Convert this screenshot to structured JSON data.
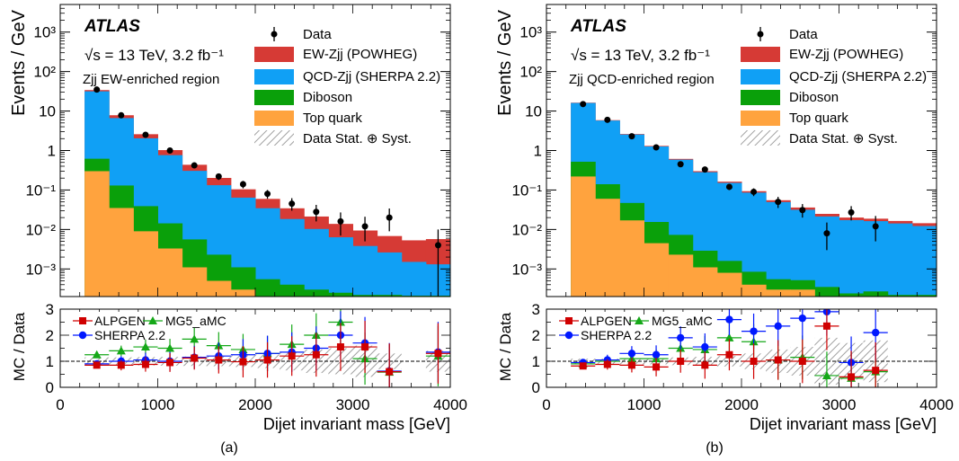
{
  "colors": {
    "ew": "#d63a35",
    "qcd": "#10a0f5",
    "diboson": "#0aa00a",
    "top": "#ffa33e",
    "data": "#000000",
    "alpgen": "#d00000",
    "sherpa": "#0018ff",
    "mg5": "#15a818",
    "hatch": "#a0a0a0"
  },
  "chart_data": [
    {
      "type": "histogram",
      "panel": "a",
      "caption": "(a)",
      "atlas_label": "ATLAS",
      "energy_label": "√s = 13 TeV, 3.2 fb⁻¹",
      "region_label": "Zjj EW-enriched region",
      "ylabel": "Events / GeV",
      "ratio_ylabel": "MC / Data",
      "xlabel": "Dijet invariant mass [GeV]",
      "x_ticks": [
        "0",
        "1000",
        "2000",
        "3000",
        "4000"
      ],
      "y_ticks": [
        "10⁻³",
        "10⁻²",
        "10⁻¹",
        "1",
        "10",
        "10²",
        "10³"
      ],
      "ratio_ticks": [
        "0",
        "1",
        "2",
        "3"
      ],
      "xlim": [
        0,
        4000
      ],
      "ylim_log": [
        0.0002,
        5000
      ],
      "ratio_ylim": [
        0,
        3
      ],
      "legend": {
        "data": "Data",
        "ew": "EW-Zjj (POWHEG)",
        "qcd": "QCD-Zjj (SHERPA 2.2)",
        "diboson": "Diboson",
        "top": "Top quark",
        "syst": "Data Stat. ⊕ Syst."
      },
      "ratio_legend": {
        "alpgen": "ALPGEN",
        "mg5": "MG5_aMC",
        "sherpa": "SHERPA 2.2"
      },
      "bin_edges": [
        250,
        500,
        750,
        1000,
        1250,
        1500,
        1750,
        2000,
        2250,
        2500,
        2750,
        3000,
        3250,
        3500,
        3750,
        4000
      ],
      "stack": {
        "top": [
          0.3,
          0.035,
          0.009,
          0.0033,
          0.0011,
          0.0005,
          0.0003,
          0.0002,
          0.0002,
          0.0002,
          0.0002,
          0.0002,
          0.0002,
          0.0002,
          0.0002
        ],
        "diboson": [
          0.32,
          0.095,
          0.03,
          0.011,
          0.0045,
          0.0018,
          0.0008,
          0.00035,
          0.0002,
          0.0001,
          5e-05,
          2e-05,
          2e-05,
          1e-05,
          1e-05
        ],
        "qcd": [
          31,
          6.5,
          2.0,
          0.75,
          0.3,
          0.13,
          0.063,
          0.034,
          0.018,
          0.01,
          0.0061,
          0.0036,
          0.0024,
          0.0013,
          0.0011
        ],
        "ew": [
          2.4,
          1.2,
          0.55,
          0.26,
          0.13,
          0.07,
          0.04,
          0.025,
          0.016,
          0.011,
          0.0075,
          0.0056,
          0.0042,
          0.0038,
          0.0044
        ]
      },
      "data": {
        "x": [
          375,
          625,
          875,
          1125,
          1375,
          1625,
          1875,
          2125,
          2375,
          2625,
          2875,
          3125,
          3375,
          3875
        ],
        "y": [
          35,
          7.8,
          2.5,
          1.0,
          0.42,
          0.22,
          0.14,
          0.08,
          0.045,
          0.028,
          0.016,
          0.012,
          0.02,
          0.004
        ],
        "err_lo": [
          2,
          0.6,
          0.2,
          0.09,
          0.05,
          0.04,
          0.03,
          0.02,
          0.015,
          0.012,
          0.009,
          0.007,
          0.011,
          0.0038
        ],
        "err_hi": [
          2,
          0.6,
          0.2,
          0.09,
          0.05,
          0.04,
          0.03,
          0.02,
          0.017,
          0.014,
          0.011,
          0.009,
          0.014,
          0.006
        ]
      },
      "ratio_band": [
        0.15,
        0.15,
        0.16,
        0.17,
        0.18,
        0.19,
        0.22,
        0.26,
        0.35,
        0.45,
        0.5,
        0.6,
        0.3,
        0.0,
        0.4
      ],
      "ratio": {
        "alpgen": {
          "x": [
            375,
            625,
            875,
            1125,
            1375,
            1625,
            1875,
            2125,
            2375,
            2625,
            2875,
            3125,
            3375,
            3875
          ],
          "y": [
            0.85,
            0.85,
            0.88,
            0.95,
            1.12,
            1.05,
            0.98,
            1.05,
            1.2,
            1.25,
            1.55,
            1.55,
            0.6,
            1.3
          ]
        },
        "sherpa": {
          "x": [
            375,
            625,
            875,
            1125,
            1375,
            1625,
            1875,
            2125,
            2375,
            2625,
            2875,
            3125,
            3375,
            3875
          ],
          "y": [
            0.9,
            1.0,
            1.05,
            1.0,
            1.15,
            1.2,
            1.25,
            1.3,
            1.35,
            1.5,
            2.0,
            1.7,
            0.62,
            1.35
          ]
        },
        "mg5": {
          "x": [
            375,
            625,
            875,
            1125,
            1375,
            1625,
            1875,
            2125,
            2375,
            2625,
            2875,
            3125,
            3375,
            3875
          ],
          "y": [
            1.25,
            1.4,
            1.55,
            1.5,
            1.85,
            1.6,
            1.45,
            1.3,
            1.65,
            2.0,
            2.5,
            1.1,
            0.58,
            1.2
          ]
        }
      }
    },
    {
      "type": "histogram",
      "panel": "b",
      "caption": "(b)",
      "atlas_label": "ATLAS",
      "energy_label": "√s = 13 TeV, 3.2 fb⁻¹",
      "region_label": "Zjj QCD-enriched region",
      "ylabel": "Events / GeV",
      "ratio_ylabel": "MC / Data",
      "xlabel": "Dijet invariant mass [GeV]",
      "x_ticks": [
        "0",
        "1000",
        "2000",
        "3000",
        "4000"
      ],
      "y_ticks": [
        "10⁻³",
        "10⁻²",
        "10⁻¹",
        "1",
        "10",
        "10²",
        "10³"
      ],
      "ratio_ticks": [
        "0",
        "1",
        "2",
        "3"
      ],
      "xlim": [
        0,
        4000
      ],
      "ylim_log": [
        0.0002,
        5000
      ],
      "ratio_ylim": [
        0,
        3
      ],
      "legend": {
        "data": "Data",
        "ew": "EW-Zjj (POWHEG)",
        "qcd": "QCD-Zjj (SHERPA 2.2)",
        "diboson": "Diboson",
        "top": "Top quark",
        "syst": "Data Stat. ⊕ Syst."
      },
      "ratio_legend": {
        "alpgen": "ALPGEN",
        "mg5": "MG5_aMC",
        "sherpa": "SHERPA 2.2"
      },
      "bin_edges": [
        250,
        500,
        750,
        1000,
        1250,
        1500,
        1750,
        2000,
        2250,
        2500,
        2750,
        3000,
        3250,
        3500,
        3750,
        4000
      ],
      "stack": {
        "top": [
          0.22,
          0.06,
          0.017,
          0.0045,
          0.0023,
          0.0011,
          0.0008,
          0.0004,
          0.0003,
          0.0003,
          0.0002,
          0.0002,
          0.0002,
          0.0002,
          0.0002
        ],
        "diboson": [
          0.3,
          0.08,
          0.03,
          0.011,
          0.005,
          0.0018,
          0.0008,
          0.00045,
          0.00025,
          0.00022,
          0.00015,
          4e-05,
          7e-05,
          2e-05,
          2e-05
        ],
        "qcd": [
          15.5,
          5.6,
          2.5,
          1.25,
          0.58,
          0.28,
          0.15,
          0.085,
          0.049,
          0.031,
          0.021,
          0.017,
          0.016,
          0.014,
          0.012
        ],
        "ew": [
          0.3,
          0.14,
          0.075,
          0.045,
          0.027,
          0.017,
          0.011,
          0.0075,
          0.0055,
          0.0045,
          0.0035,
          0.0028,
          0.0025,
          0.0022,
          0.0022
        ]
      },
      "data": {
        "x": [
          375,
          625,
          875,
          1125,
          1375,
          1625,
          1875,
          2125,
          2375,
          2625,
          2875,
          3125,
          3375
        ],
        "y": [
          15,
          6,
          2.3,
          1.2,
          0.45,
          0.33,
          0.12,
          0.09,
          0.05,
          0.031,
          0.008,
          0.027,
          0.012
        ],
        "err_lo": [
          1,
          0.4,
          0.15,
          0.1,
          0.05,
          0.04,
          0.02,
          0.02,
          0.015,
          0.011,
          0.005,
          0.01,
          0.007
        ],
        "err_hi": [
          1,
          0.4,
          0.15,
          0.1,
          0.05,
          0.04,
          0.02,
          0.02,
          0.017,
          0.013,
          0.007,
          0.012,
          0.01
        ]
      },
      "ratio_band": [
        0.1,
        0.1,
        0.12,
        0.12,
        0.15,
        0.17,
        0.2,
        0.3,
        0.45,
        0.55,
        0.9,
        0.7,
        0.8,
        0.0,
        0.0
      ],
      "ratio": {
        "alpgen": {
          "x": [
            375,
            625,
            875,
            1125,
            1375,
            1625,
            1875,
            2125,
            2375,
            2625,
            2875,
            3125,
            3375
          ],
          "y": [
            0.82,
            0.88,
            0.85,
            0.78,
            1.0,
            0.85,
            1.25,
            1.0,
            1.05,
            1.0,
            2.35,
            0.4,
            0.65
          ]
        },
        "sherpa": {
          "x": [
            375,
            625,
            875,
            1125,
            1375,
            1625,
            1875,
            2125,
            2375,
            2625,
            2875,
            3125,
            3375
          ],
          "y": [
            0.95,
            1.05,
            1.3,
            1.25,
            1.9,
            1.55,
            2.6,
            2.15,
            2.35,
            2.65,
            2.9,
            0.95,
            2.1
          ]
        },
        "mg5": {
          "x": [
            375,
            625,
            875,
            1125,
            1375,
            1625,
            1875,
            2125,
            2375,
            2625,
            2875,
            3125,
            3375
          ],
          "y": [
            0.9,
            1.0,
            1.1,
            1.1,
            1.5,
            1.45,
            1.9,
            1.75,
            1.05,
            1.15,
            0.45,
            0.35,
            0.6
          ]
        }
      }
    }
  ]
}
